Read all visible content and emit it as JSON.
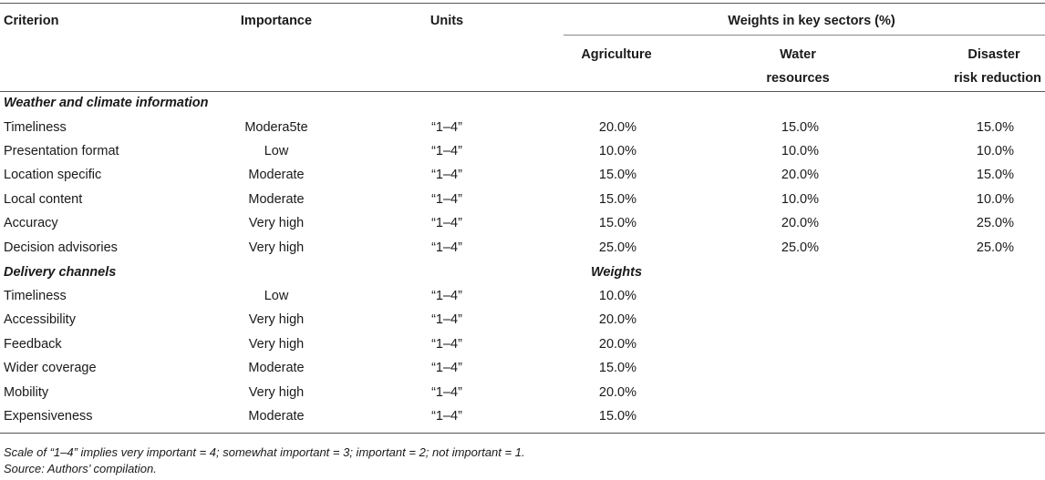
{
  "header": {
    "criterion": "Criterion",
    "importance": "Importance",
    "units": "Units",
    "weights_group": "Weights in key sectors (%)",
    "sectors": [
      "Agriculture",
      "Water",
      "resources",
      "Disaster",
      "risk reduction"
    ]
  },
  "section1": {
    "title": "Weather and climate information",
    "rows": [
      {
        "criterion": "Timeliness",
        "importance": "Modera5te",
        "units": "“1–4”",
        "agri": "20.0%",
        "water": "15.0%",
        "drr": "15.0%"
      },
      {
        "criterion": "Presentation format",
        "importance": "Low",
        "units": "“1–4”",
        "agri": "10.0%",
        "water": "10.0%",
        "drr": "10.0%"
      },
      {
        "criterion": "Location specific",
        "importance": "Moderate",
        "units": "“1–4”",
        "agri": "15.0%",
        "water": "20.0%",
        "drr": "15.0%"
      },
      {
        "criterion": "Local content",
        "importance": "Moderate",
        "units": "“1–4”",
        "agri": "15.0%",
        "water": "10.0%",
        "drr": "10.0%"
      },
      {
        "criterion": "Accuracy",
        "importance": "Very high",
        "units": "“1–4”",
        "agri": "15.0%",
        "water": "20.0%",
        "drr": "25.0%"
      },
      {
        "criterion": "Decision advisories",
        "importance": "Very high",
        "units": "“1–4”",
        "agri": "25.0%",
        "water": "25.0%",
        "drr": "25.0%"
      }
    ]
  },
  "section2": {
    "title": "Delivery channels",
    "weights_label": "Weights",
    "rows": [
      {
        "criterion": "Timeliness",
        "importance": "Low",
        "units": "“1–4”",
        "weight": "10.0%"
      },
      {
        "criterion": "Accessibility",
        "importance": "Very high",
        "units": "“1–4”",
        "weight": "20.0%"
      },
      {
        "criterion": "Feedback",
        "importance": "Very high",
        "units": "“1–4”",
        "weight": "20.0%"
      },
      {
        "criterion": "Wider coverage",
        "importance": "Moderate",
        "units": "“1–4”",
        "weight": "15.0%"
      },
      {
        "criterion": "Mobility",
        "importance": "Very high",
        "units": "“1–4”",
        "weight": "20.0%"
      },
      {
        "criterion": "Expensiveness",
        "importance": "Moderate",
        "units": "“1–4”",
        "weight": "15.0%"
      }
    ]
  },
  "notes": {
    "scale": "Scale of “1–4” implies very important = 4; somewhat important = 3; important = 2; not important = 1.",
    "source": "Source: Authors’ compilation."
  }
}
